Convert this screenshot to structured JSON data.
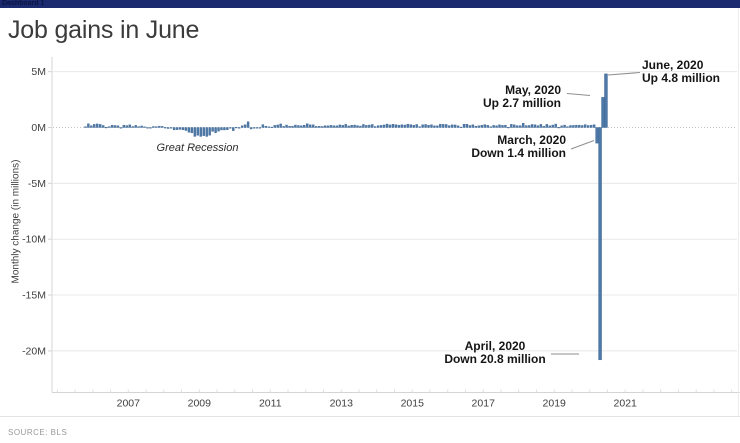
{
  "header": {
    "app_bar_label": "Dashboard 1"
  },
  "footer": {
    "source_label": "SOURCE: BLS"
  },
  "colors": {
    "app_bar_bg": "#1b2a6e",
    "bar_fill": "#4e79a7",
    "bar_stroke": "#3f6795",
    "grid_line": "#e8e8e8",
    "zero_line": "#c4c4c4",
    "axis_line": "#d4d4d4",
    "minor_tick": "#e0e0e0",
    "connector": "#8f8f8f",
    "text_dark": "#3b3b3b",
    "text_muted": "#999999"
  },
  "chart_data": {
    "type": "bar",
    "title": "Job gains in June",
    "ylabel": "Monthly change (in millions)",
    "recession_label": "Great Recession",
    "x_start": {
      "year": 2005,
      "month": 10
    },
    "x_end": {
      "year": 2020,
      "month": 6
    },
    "xlim_years": [
      2004.85,
      2024.15
    ],
    "ylim": [
      -23.6,
      6.2
    ],
    "x_ticks": [
      2007,
      2009,
      2011,
      2013,
      2015,
      2017,
      2019,
      2021
    ],
    "x_tick_labels": [
      "2007",
      "2009",
      "2011",
      "2013",
      "2015",
      "2017",
      "2019",
      "2021"
    ],
    "y_ticks": [
      5,
      0,
      -5,
      -10,
      -15,
      -20
    ],
    "y_tick_labels": [
      "5M",
      "0M",
      "-5M",
      "-10M",
      "-15M",
      "-20M"
    ],
    "grid": true,
    "values_monthly": [
      0.08,
      0.33,
      0.16,
      0.28,
      0.32,
      0.28,
      0.18,
      0.02,
      0.08,
      0.21,
      0.18,
      0.16,
      0.0,
      0.21,
      0.17,
      0.24,
      0.09,
      0.19,
      0.08,
      0.14,
      0.07,
      -0.03,
      -0.02,
      0.09,
      0.08,
      0.12,
      0.1,
      0.01,
      -0.09,
      -0.05,
      -0.21,
      -0.19,
      -0.17,
      -0.21,
      -0.27,
      -0.43,
      -0.48,
      -0.8,
      -0.7,
      -0.8,
      -0.73,
      -0.8,
      -0.69,
      -0.35,
      -0.47,
      -0.33,
      -0.22,
      -0.22,
      -0.2,
      -0.01,
      -0.28,
      0.02,
      -0.07,
      0.16,
      0.25,
      0.52,
      -0.13,
      -0.07,
      -0.04,
      -0.05,
      0.26,
      0.12,
      0.07,
      0.04,
      0.19,
      0.23,
      0.32,
      0.1,
      0.22,
      0.11,
      0.12,
      0.22,
      0.18,
      0.16,
      0.2,
      0.34,
      0.24,
      0.24,
      0.1,
      0.11,
      0.09,
      0.16,
      0.15,
      0.19,
      0.16,
      0.15,
      0.23,
      0.2,
      0.28,
      0.14,
      0.2,
      0.22,
      0.17,
      0.13,
      0.27,
      0.19,
      0.22,
      0.27,
      0.09,
      0.17,
      0.19,
      0.23,
      0.31,
      0.23,
      0.29,
      0.25,
      0.21,
      0.25,
      0.22,
      0.3,
      0.26,
      0.2,
      0.27,
      0.08,
      0.25,
      0.27,
      0.2,
      0.25,
      0.15,
      0.15,
      0.3,
      0.28,
      0.27,
      0.17,
      0.24,
      0.23,
      0.15,
      0.04,
      0.3,
      0.29,
      0.18,
      0.25,
      0.12,
      0.16,
      0.2,
      0.26,
      0.2,
      0.08,
      0.19,
      0.15,
      0.24,
      0.19,
      0.21,
      0.02,
      0.28,
      0.24,
      0.17,
      0.17,
      0.38,
      0.17,
      0.18,
      0.27,
      0.25,
      0.17,
      0.28,
      0.11,
      0.28,
      0.15,
      0.22,
      0.31,
      0.02,
      0.15,
      0.22,
      0.08,
      0.18,
      0.19,
      0.21,
      0.21,
      0.18,
      0.26,
      0.18,
      0.21,
      0.25,
      -1.4,
      -20.8,
      2.7,
      4.8
    ],
    "annotations": [
      {
        "id": "june",
        "line1": "June, 2020",
        "line2": "Up 4.8 million"
      },
      {
        "id": "may",
        "line1": "May, 2020",
        "line2": "Up 2.7 million"
      },
      {
        "id": "march",
        "line1": "March, 2020",
        "line2": "Down 1.4 million"
      },
      {
        "id": "april",
        "line1": "April, 2020",
        "line2": "Down 20.8 million"
      }
    ]
  }
}
